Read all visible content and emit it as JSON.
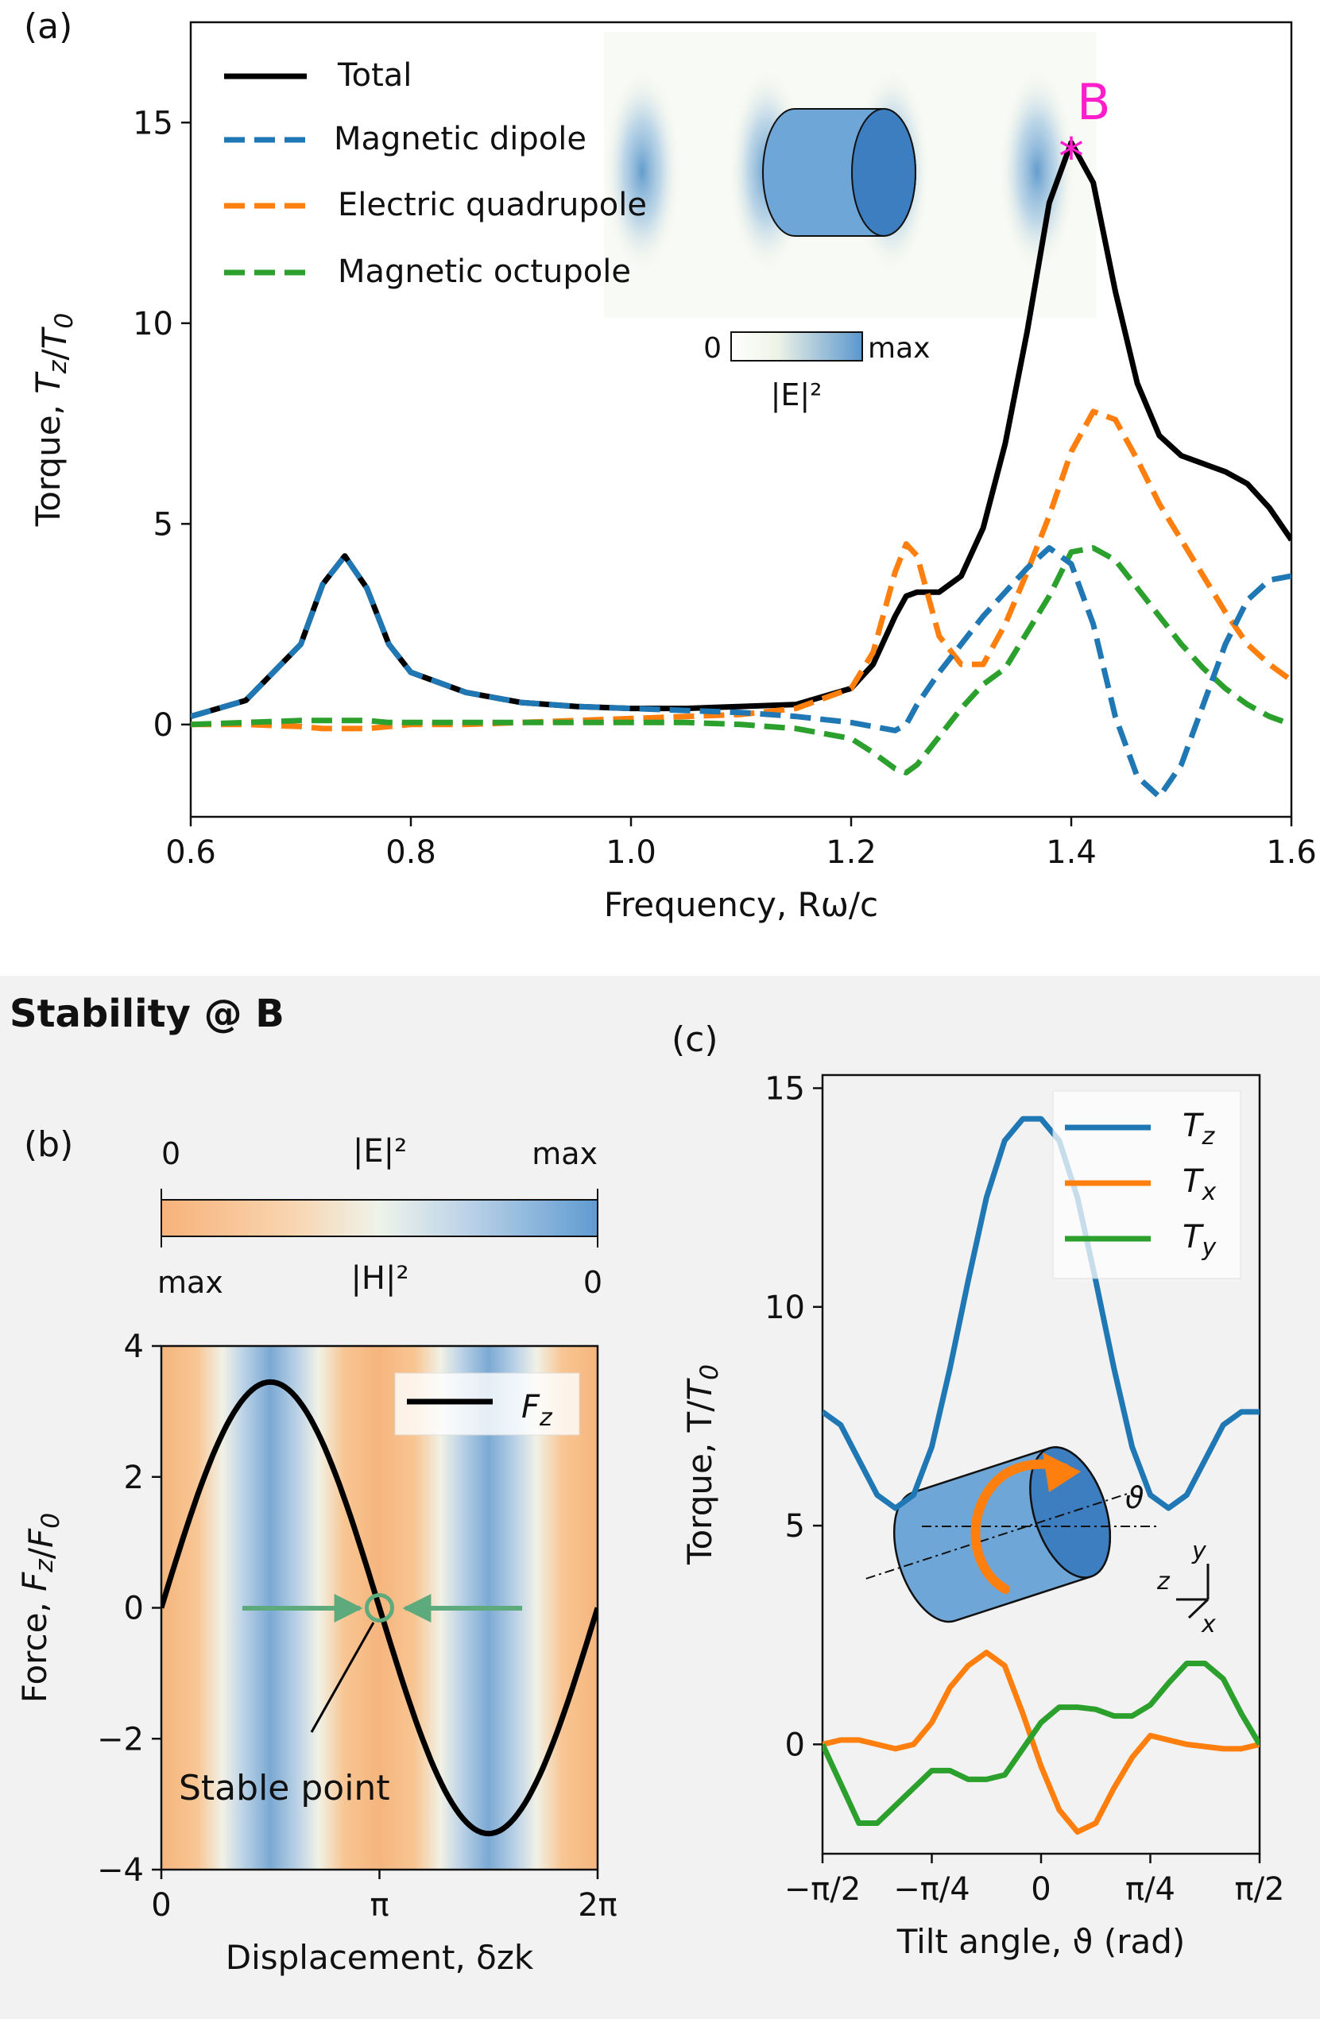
{
  "panel_a": {
    "label": "(a)",
    "marker_label": "B",
    "colorbar": {
      "min_label": "0",
      "max_label": "max",
      "quantity_label": "|E|²"
    },
    "legend": [
      "Total",
      "Magnetic dipole",
      "Electric quadrupole",
      "Magnetic octupole"
    ],
    "colors": {
      "total": "#000000",
      "md": "#1f77b4",
      "eq": "#ff7f0e",
      "mo": "#2ca02c",
      "marker": "#ff1ecb"
    }
  },
  "panel_b": {
    "label": "(b)",
    "section_title": "Stability @ B",
    "colorbar": {
      "top_left": "0",
      "top_mid": "|E|²",
      "top_right": "max",
      "bottom_left": "max",
      "bottom_mid": "|H|²",
      "bottom_right": "0"
    },
    "annotation": "Stable point",
    "legend": [
      "F_z"
    ]
  },
  "panel_c": {
    "label": "(c)",
    "legend": [
      "T_z",
      "T_x",
      "T_y"
    ],
    "inset_axes": {
      "z": "z",
      "y": "y",
      "x": "x",
      "angle": "ϑ"
    }
  },
  "chart_data": [
    {
      "type": "line",
      "xlabel": "Frequency, Rω/c",
      "ylabel": "Torque, T_z/T_0",
      "xlim": [
        0.6,
        1.6
      ],
      "ylim": [
        -2.3,
        17.5
      ],
      "xticks": [
        "0.6",
        "0.8",
        "1.0",
        "1.2",
        "1.4",
        "1.6"
      ],
      "yticks": [
        "0",
        "5",
        "10",
        "15"
      ],
      "x": [
        0.6,
        0.65,
        0.7,
        0.72,
        0.74,
        0.76,
        0.78,
        0.8,
        0.85,
        0.9,
        0.95,
        1.0,
        1.05,
        1.1,
        1.15,
        1.2,
        1.22,
        1.24,
        1.25,
        1.26,
        1.28,
        1.3,
        1.32,
        1.34,
        1.36,
        1.38,
        1.4,
        1.42,
        1.44,
        1.46,
        1.48,
        1.5,
        1.52,
        1.54,
        1.56,
        1.58,
        1.6
      ],
      "series": [
        {
          "name": "Total",
          "values": [
            0.2,
            0.6,
            2.0,
            3.5,
            4.2,
            3.4,
            2.0,
            1.3,
            0.8,
            0.55,
            0.45,
            0.4,
            0.4,
            0.45,
            0.5,
            0.9,
            1.5,
            2.7,
            3.2,
            3.3,
            3.3,
            3.7,
            4.9,
            7.0,
            9.8,
            13.0,
            14.5,
            13.5,
            10.8,
            8.5,
            7.2,
            6.7,
            6.5,
            6.3,
            6.0,
            5.4,
            4.6
          ]
        },
        {
          "name": "Magnetic dipole",
          "values": [
            0.2,
            0.6,
            2.0,
            3.5,
            4.2,
            3.4,
            2.0,
            1.3,
            0.8,
            0.55,
            0.45,
            0.4,
            0.35,
            0.3,
            0.2,
            0.05,
            -0.05,
            -0.15,
            0.0,
            0.5,
            1.3,
            2.0,
            2.7,
            3.3,
            3.9,
            4.4,
            4.0,
            2.5,
            0.2,
            -1.3,
            -1.8,
            -1.0,
            0.5,
            2.0,
            3.1,
            3.6,
            3.7
          ]
        },
        {
          "name": "Electric quadrupole",
          "values": [
            0.0,
            0.0,
            -0.05,
            -0.1,
            -0.1,
            -0.1,
            -0.05,
            0.0,
            0.0,
            0.05,
            0.1,
            0.15,
            0.2,
            0.25,
            0.4,
            0.9,
            1.8,
            3.8,
            4.5,
            4.2,
            2.2,
            1.5,
            1.5,
            2.5,
            3.8,
            5.2,
            6.8,
            7.8,
            7.6,
            6.6,
            5.5,
            4.6,
            3.7,
            2.8,
            2.0,
            1.5,
            1.1
          ]
        },
        {
          "name": "Magnetic octupole",
          "values": [
            0.0,
            0.05,
            0.1,
            0.1,
            0.1,
            0.1,
            0.05,
            0.05,
            0.05,
            0.05,
            0.05,
            0.05,
            0.05,
            0.0,
            -0.1,
            -0.35,
            -0.7,
            -1.1,
            -1.2,
            -1.0,
            -0.3,
            0.4,
            1.0,
            1.4,
            2.3,
            3.2,
            4.3,
            4.4,
            4.1,
            3.4,
            2.7,
            2.0,
            1.4,
            0.9,
            0.5,
            0.2,
            0.0
          ]
        }
      ],
      "marker": {
        "x": 1.4,
        "y": 14.5,
        "label": "B"
      }
    },
    {
      "type": "line",
      "xlabel": "Displacement, δzk",
      "ylabel": "Force, F_z/F_0",
      "xlim": [
        0,
        6.2832
      ],
      "ylim": [
        -4,
        4
      ],
      "xticks": [
        "0",
        "π",
        "2π"
      ],
      "yticks": [
        "−4",
        "−2",
        "0",
        "2",
        "4"
      ],
      "series": [
        {
          "name": "F_z",
          "function": "3.45·sin(δzk)"
        }
      ],
      "stable_point": {
        "x": 3.1416,
        "y": 0
      }
    },
    {
      "type": "line",
      "xlabel": "Tilt angle, ϑ (rad)",
      "ylabel": "Torque, T/T_0",
      "xlim": [
        -1.5708,
        1.5708
      ],
      "ylim": [
        -2.5,
        15.3
      ],
      "xticks": [
        "−π/2",
        "−π/4",
        "0",
        "π/4",
        "π/2"
      ],
      "yticks": [
        "0",
        "5",
        "10",
        "15"
      ],
      "x": [
        -1.5708,
        -1.4399,
        -1.309,
        -1.1781,
        -1.0472,
        -0.9163,
        -0.7854,
        -0.6545,
        -0.5236,
        -0.3927,
        -0.2618,
        -0.1309,
        0.0,
        0.1309,
        0.2618,
        0.3927,
        0.5236,
        0.6545,
        0.7854,
        0.9163,
        1.0472,
        1.1781,
        1.309,
        1.4399,
        1.5708
      ],
      "series": [
        {
          "name": "T_z",
          "values": [
            7.6,
            7.3,
            6.5,
            5.7,
            5.4,
            5.7,
            6.8,
            8.6,
            10.6,
            12.5,
            13.8,
            14.3,
            14.3,
            13.8,
            12.5,
            10.6,
            8.6,
            6.8,
            5.7,
            5.4,
            5.7,
            6.5,
            7.3,
            7.6,
            7.6
          ]
        },
        {
          "name": "T_x",
          "values": [
            0.0,
            0.1,
            0.1,
            0.0,
            -0.1,
            0.0,
            0.5,
            1.3,
            1.8,
            2.1,
            1.8,
            0.7,
            -0.5,
            -1.5,
            -2.0,
            -1.8,
            -1.0,
            -0.3,
            0.2,
            0.1,
            0.0,
            -0.05,
            -0.1,
            -0.1,
            0.0
          ]
        },
        {
          "name": "T_y",
          "values": [
            0.0,
            -0.9,
            -1.8,
            -1.8,
            -1.4,
            -1.0,
            -0.6,
            -0.6,
            -0.8,
            -0.8,
            -0.7,
            -0.1,
            0.5,
            0.85,
            0.85,
            0.8,
            0.65,
            0.65,
            0.9,
            1.4,
            1.85,
            1.85,
            1.5,
            0.7,
            0.0
          ]
        }
      ]
    }
  ]
}
